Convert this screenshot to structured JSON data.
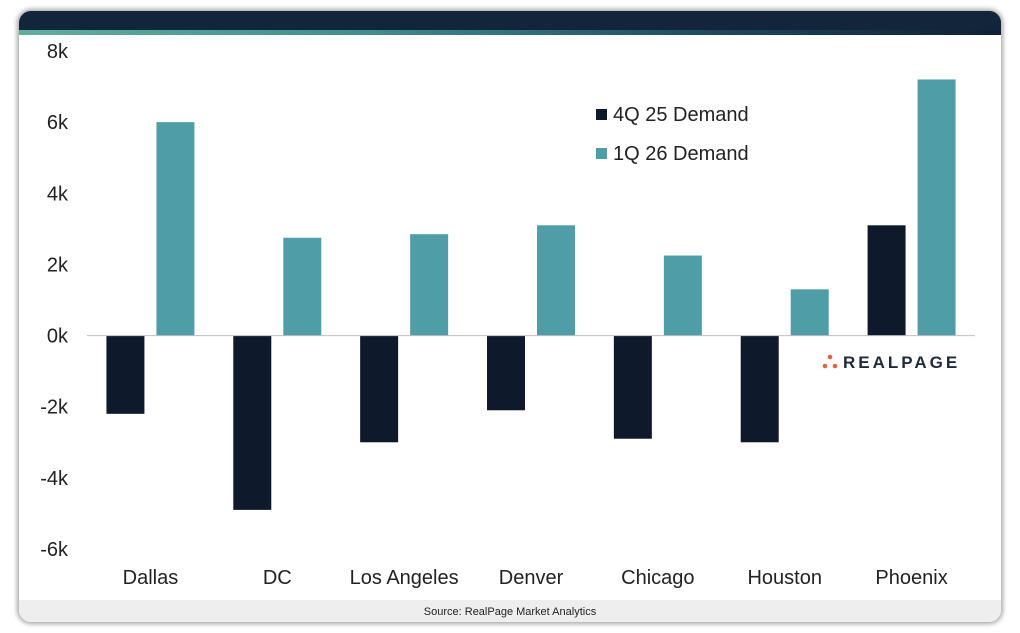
{
  "colors": {
    "series_1": "#0e1a2b",
    "series_2": "#4f9ea7",
    "logo_dots": "#e8623a",
    "header_band": "#12253a"
  },
  "source": "Source: RealPage Market Analytics",
  "logo": {
    "text": "REALPAGE",
    "icon": "realpage-dots-icon"
  },
  "chart_data": {
    "type": "bar",
    "title": "",
    "xlabel": "",
    "ylabel": "",
    "categories": [
      "Dallas",
      "DC",
      "Los Angeles",
      "Denver",
      "Chicago",
      "Houston",
      "Phoenix"
    ],
    "series": [
      {
        "name": "4Q 25 Demand",
        "values": [
          -2200,
          -4900,
          -3000,
          -2100,
          -2900,
          -3000,
          3100
        ]
      },
      {
        "name": "1Q 26 Demand",
        "values": [
          6000,
          2750,
          2850,
          3100,
          2250,
          1300,
          7200
        ]
      }
    ],
    "ylim": [
      -6000,
      8000
    ],
    "yticks": [
      8000,
      6000,
      4000,
      2000,
      0,
      -2000,
      -4000,
      -6000
    ],
    "ytick_labels": [
      "8k",
      "6k",
      "4k",
      "2k",
      "0k",
      "-2k",
      "-4k",
      "-6k"
    ],
    "grid": false,
    "legend_position": "top-right"
  }
}
